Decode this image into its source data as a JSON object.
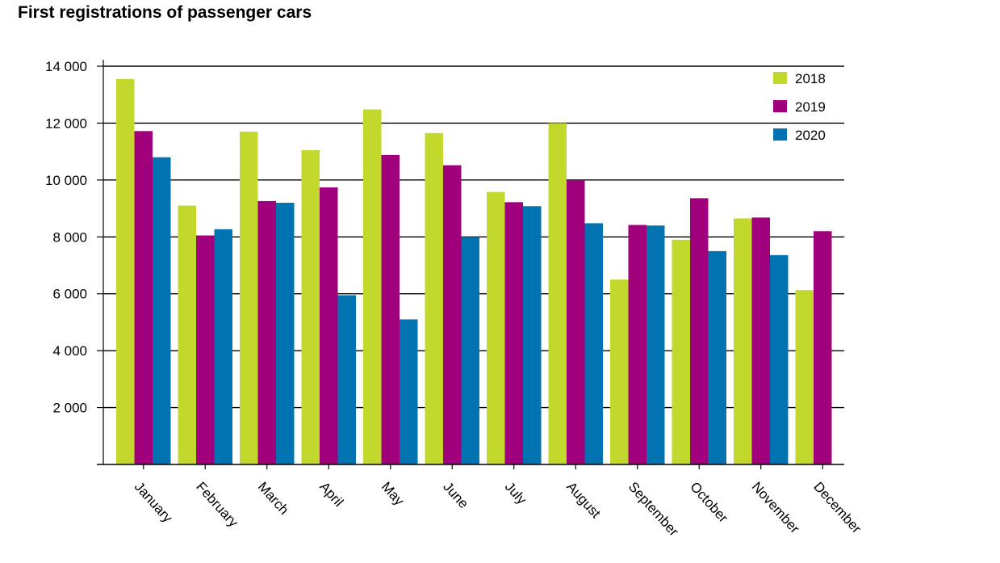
{
  "chart_data": {
    "type": "bar",
    "title": "First registrations of passenger cars",
    "xlabel": "",
    "ylabel": "",
    "categories": [
      "January",
      "February",
      "March",
      "April",
      "May",
      "June",
      "July",
      "August",
      "September",
      "October",
      "November",
      "December"
    ],
    "series": [
      {
        "name": "2018",
        "color": "#c3d82c",
        "values": [
          13550,
          9100,
          11700,
          11050,
          12480,
          11650,
          9580,
          12000,
          6500,
          7900,
          8650,
          6130
        ]
      },
      {
        "name": "2019",
        "color": "#a1007d",
        "values": [
          11720,
          8050,
          9260,
          9740,
          10880,
          10520,
          9220,
          10000,
          8420,
          9360,
          8680,
          8200
        ]
      },
      {
        "name": "2020",
        "color": "#0073b0",
        "values": [
          10800,
          8270,
          9200,
          5950,
          5100,
          8000,
          9080,
          8480,
          8400,
          7500,
          7360,
          null
        ]
      }
    ],
    "yticks": [
      2000,
      4000,
      6000,
      8000,
      10000,
      12000,
      14000
    ],
    "ytick_labels": [
      "2 000",
      "4 000",
      "6 000",
      "8 000",
      "10 000",
      "12 000",
      "14 000"
    ],
    "ylim": [
      0,
      14000
    ],
    "grid": true,
    "legend": "top-right"
  }
}
